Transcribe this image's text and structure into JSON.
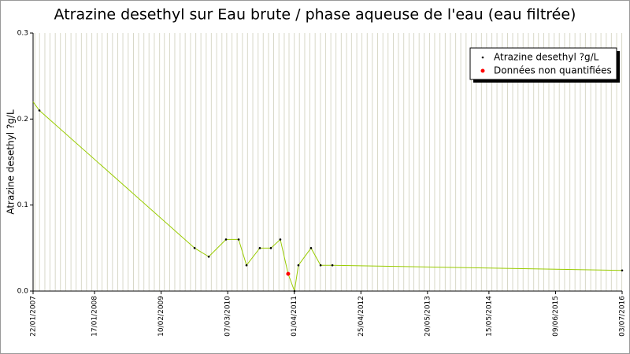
{
  "chart_data": {
    "type": "line",
    "title": "Atrazine desethyl sur Eau brute / phase aqueuse de l'eau (eau filtrée)",
    "y_label": "Atrazine desethyl ?g/L",
    "x": [
      "22/01/2007",
      "28/02/2007",
      "25/08/2009",
      "16/11/2009",
      "25/02/2010",
      "10/05/2010",
      "25/06/2010",
      "11/09/2010",
      "15/11/2010",
      "09/01/2011",
      "24/02/2011",
      "02/04/2011",
      "25/04/2011",
      "08/07/2011",
      "02/09/2011",
      "10/11/2011",
      "03/07/2016"
    ],
    "series": [
      {
        "name": "Atrazine desethyl ?g/L",
        "color": "#99cc00",
        "marker_color": "#000000",
        "values": [
          0.22,
          0.21,
          0.05,
          0.04,
          0.06,
          0.06,
          0.03,
          0.05,
          0.05,
          0.06,
          0.02,
          0,
          0.03,
          0.05,
          0.03,
          0.03,
          0.024
        ]
      },
      {
        "name": "Données non quantifiées",
        "color": "#ff0000",
        "values": [
          null,
          null,
          null,
          null,
          null,
          null,
          null,
          null,
          null,
          null,
          0.02,
          null,
          null,
          null,
          null,
          null,
          null
        ]
      }
    ],
    "xlim": [
      "22/01/2007",
      "03/07/2016"
    ],
    "xticks": [
      "22/01/2007",
      "17/01/2008",
      "10/02/2009",
      "07/03/2010",
      "01/04/2011",
      "25/04/2012",
      "20/05/2013",
      "15/05/2014",
      "09/06/2015",
      "03/07/2016"
    ],
    "ylim": [
      0,
      0.3
    ],
    "yticks": [
      {
        "value": 0,
        "label": "0.0"
      },
      0.1,
      0.2,
      0.3
    ],
    "grid": true,
    "legend": "top-right"
  }
}
